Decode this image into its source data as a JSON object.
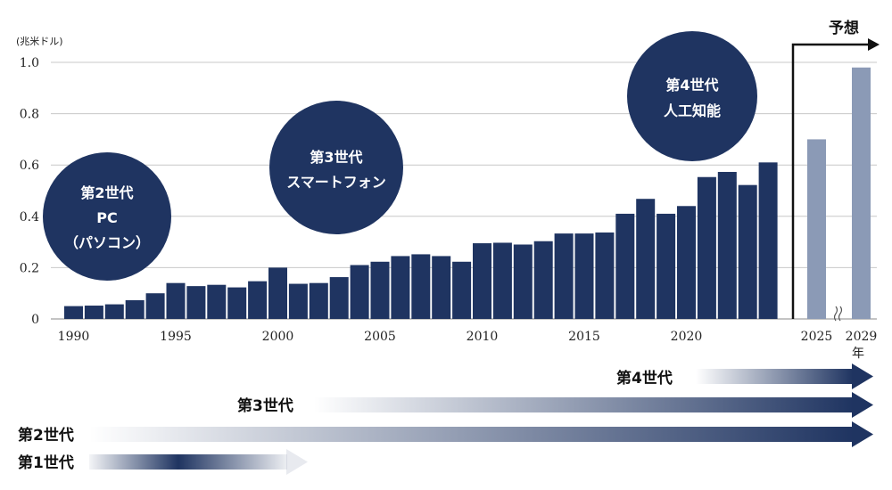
{
  "chart_data": {
    "type": "bar",
    "unit_label": "(兆米ドル)",
    "xlabel": "年",
    "ylim": [
      0,
      1.0
    ],
    "yticks": [
      "0",
      "0.2",
      "0.4",
      "0.6",
      "0.8",
      "1.0"
    ],
    "ytick_values": [
      0,
      0.2,
      0.4,
      0.6,
      0.8,
      1.0
    ],
    "xticks": [
      "1990",
      "1995",
      "2000",
      "2005",
      "2010",
      "2015",
      "2020"
    ],
    "forecast_label": "予想",
    "colors": {
      "actual": "#1f3461",
      "forecast": "#8b9ab6",
      "grid": "#c8c8c8"
    },
    "categories": [
      "1990",
      "1991",
      "1992",
      "1993",
      "1994",
      "1995",
      "1996",
      "1997",
      "1998",
      "1999",
      "2000",
      "2001",
      "2002",
      "2003",
      "2004",
      "2005",
      "2006",
      "2007",
      "2008",
      "2009",
      "2010",
      "2011",
      "2012",
      "2013",
      "2014",
      "2015",
      "2016",
      "2017",
      "2018",
      "2019",
      "2020",
      "2021",
      "2022",
      "2023",
      "2024"
    ],
    "values": [
      0.05,
      0.052,
      0.057,
      0.073,
      0.1,
      0.14,
      0.128,
      0.133,
      0.123,
      0.147,
      0.2,
      0.137,
      0.14,
      0.163,
      0.21,
      0.223,
      0.245,
      0.252,
      0.245,
      0.223,
      0.295,
      0.297,
      0.29,
      0.303,
      0.333,
      0.333,
      0.337,
      0.41,
      0.468,
      0.41,
      0.44,
      0.553,
      0.573,
      0.522,
      0.61
    ],
    "forecast": [
      {
        "year": "2025",
        "value": 0.7
      },
      {
        "year": "2029",
        "value": 0.98
      }
    ],
    "bubbles": [
      {
        "lines": [
          "第2世代",
          "PC",
          "（パソコン）"
        ]
      },
      {
        "lines": [
          "第3世代",
          "スマートフォン"
        ]
      },
      {
        "lines": [
          "第4世代",
          "人工知能"
        ]
      }
    ],
    "generations": [
      {
        "label": "第4世代"
      },
      {
        "label": "第3世代"
      },
      {
        "label": "第2世代"
      },
      {
        "label": "第1世代"
      }
    ]
  }
}
